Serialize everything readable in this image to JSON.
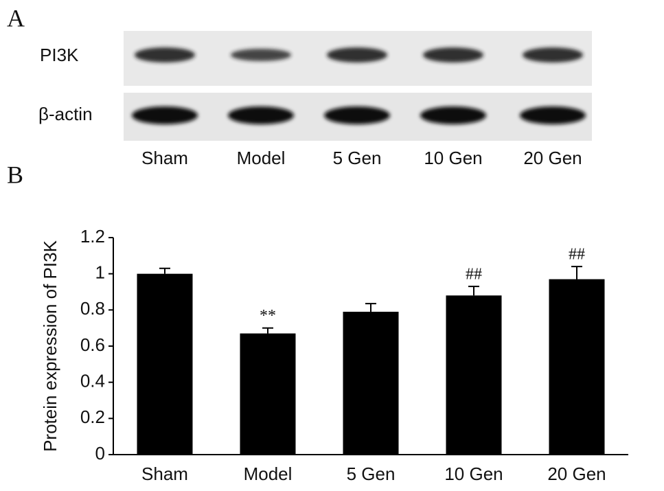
{
  "panel_a": {
    "label": "A",
    "rows": [
      "PI3K",
      "β-actin"
    ],
    "lanes": [
      "Sham",
      "Model",
      "5 Gen",
      "10 Gen",
      "20 Gen"
    ]
  },
  "chart_data": {
    "type": "bar",
    "panel_label": "B",
    "ylabel": "Protein expression of PI3K",
    "categories": [
      "Sham",
      "Model",
      "5 Gen",
      "10 Gen",
      "20 Gen"
    ],
    "values": [
      1.0,
      0.67,
      0.79,
      0.88,
      0.97
    ],
    "errors": [
      0.03,
      0.03,
      0.045,
      0.05,
      0.07
    ],
    "annotations": [
      {
        "category": "Model",
        "text": "**"
      },
      {
        "category": "10 Gen",
        "text": "##"
      },
      {
        "category": "20 Gen",
        "text": "##"
      }
    ],
    "color": "#000000",
    "ylim": [
      0,
      1.2
    ],
    "yticks": [
      0,
      0.2,
      0.4,
      0.6,
      0.8,
      1,
      1.2
    ],
    "grid": false
  }
}
